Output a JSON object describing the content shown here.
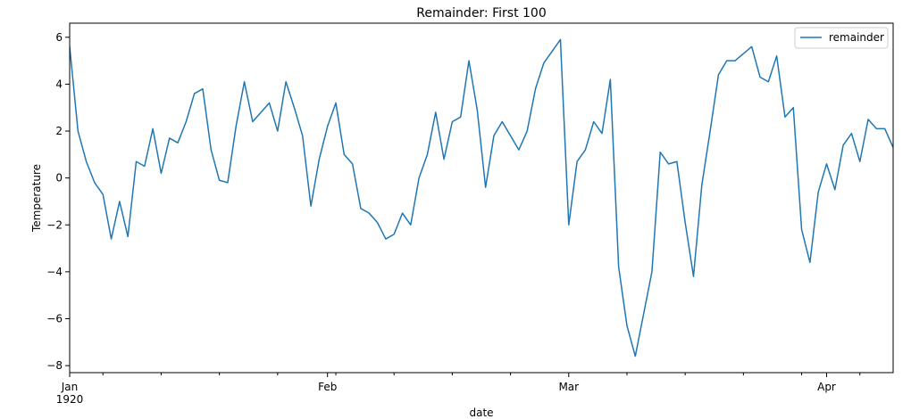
{
  "chart_data": {
    "type": "line",
    "title": "Remainder: First 100",
    "xlabel": "date",
    "ylabel": "Temperature",
    "ylim": [
      -8.3,
      6.6
    ],
    "xlim": [
      "1920-01-01",
      "1920-04-09"
    ],
    "y_ticks": [
      -8,
      -6,
      -4,
      -2,
      0,
      2,
      4,
      6
    ],
    "x_major_ticks": [
      {
        "date": "1920-01-01",
        "label": "Jan",
        "sublabel": "1920"
      },
      {
        "date": "1920-02-01",
        "label": "Feb",
        "sublabel": ""
      },
      {
        "date": "1920-03-01",
        "label": "Mar",
        "sublabel": ""
      },
      {
        "date": "1920-04-01",
        "label": "Apr",
        "sublabel": ""
      }
    ],
    "x_minor_ticks": [
      "1920-01-05",
      "1920-01-12",
      "1920-01-19",
      "1920-01-26",
      "1920-02-02",
      "1920-02-09",
      "1920-02-16",
      "1920-02-23",
      "1920-03-08",
      "1920-03-15",
      "1920-03-22",
      "1920-03-29",
      "1920-04-05"
    ],
    "grid": false,
    "legend": {
      "position": "top-right",
      "entries": [
        "remainder"
      ]
    },
    "series": [
      {
        "name": "remainder",
        "color": "#1f77b4",
        "start_date": "1920-01-01",
        "frequency": "daily",
        "values": [
          5.6,
          2.0,
          0.7,
          -0.2,
          -0.7,
          -2.6,
          -1.0,
          -2.5,
          0.7,
          0.5,
          2.1,
          0.2,
          1.7,
          1.5,
          2.4,
          3.6,
          3.8,
          1.2,
          -0.1,
          -0.2,
          2.2,
          4.1,
          2.4,
          2.8,
          3.2,
          2.0,
          4.1,
          3.0,
          1.8,
          -1.2,
          0.8,
          2.2,
          3.2,
          1.0,
          0.6,
          -1.3,
          -1.5,
          -1.9,
          -2.6,
          -2.4,
          -1.5,
          -2.0,
          0.0,
          1.0,
          2.8,
          0.8,
          2.4,
          2.6,
          5.0,
          2.9,
          -0.4,
          1.8,
          2.4,
          1.8,
          1.2,
          2.0,
          3.8,
          4.9,
          5.4,
          5.9,
          -2.0,
          0.7,
          1.2,
          2.4,
          1.9,
          4.2,
          -3.8,
          -6.3,
          -7.6,
          -5.8,
          -4.0,
          1.1,
          0.6,
          0.7,
          -1.9,
          -4.2,
          -0.3,
          2.0,
          4.4,
          5.0,
          5.0,
          5.3,
          5.6,
          4.3,
          4.1,
          5.2,
          2.6,
          3.0,
          -2.2,
          -3.6,
          -0.6,
          0.6,
          -0.5,
          1.4,
          1.9,
          0.7,
          2.5,
          2.1,
          2.1,
          1.3
        ]
      }
    ]
  }
}
